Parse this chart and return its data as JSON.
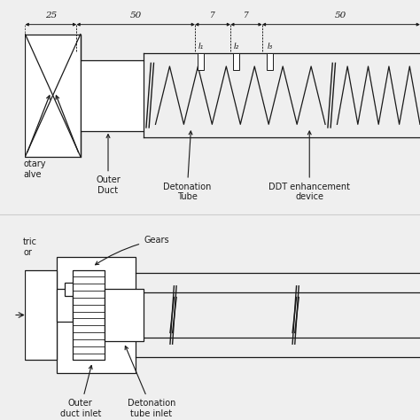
{
  "fig_bg": "#efefef",
  "line_color": "#1a1a1a",
  "sensor_labels": [
    "I₁",
    "I₂",
    "I₃"
  ],
  "top_labels": [
    "Outer\nDuct",
    "Detonation\nTube",
    "DDT enhancement\ndevice"
  ],
  "bot_labels": [
    "Gears",
    "Outer\nduct inlet",
    "Detonation\ntube inlet"
  ],
  "dims": [
    "25",
    "50",
    "7",
    "7",
    "50"
  ]
}
